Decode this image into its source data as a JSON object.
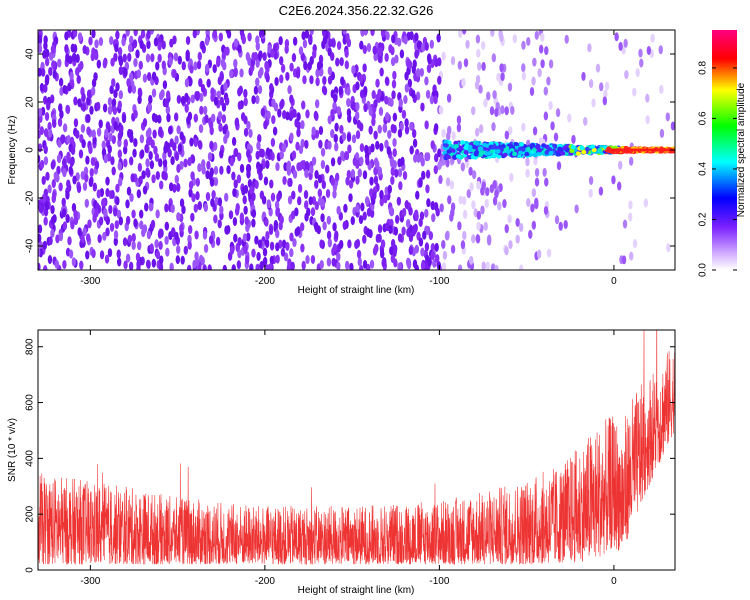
{
  "chart_data": [
    {
      "type": "heatmap",
      "title": "C2E6.2024.356.22.32.G26",
      "xlabel": "Height of straight line (km)",
      "ylabel": "Frequency (Hz)",
      "xlim": [
        -330,
        35
      ],
      "ylim": [
        -50,
        50
      ],
      "xticks": [
        -300,
        -200,
        -100,
        0
      ],
      "yticks": [
        -40,
        -20,
        0,
        20,
        40
      ],
      "colorbar": {
        "label": "Normalized spectral amplitude",
        "range": [
          0.0,
          0.95
        ],
        "ticks": [
          "0.0",
          "0.2",
          "0.4",
          "0.6",
          "0.8"
        ],
        "colormap": [
          "#ff00ff",
          "#0000ff",
          "#00ffff",
          "#00ff00",
          "#ffff00",
          "#ff0000",
          "#ff0080"
        ]
      },
      "description_points": [
        {
          "x": -330,
          "band": "broad",
          "amplitude": 0.05
        },
        {
          "x": -100,
          "band": "broad",
          "amplitude": 0.05
        },
        {
          "x": -95,
          "band": "narrow",
          "amplitude": 0.25
        },
        {
          "x": -50,
          "band": "narrow",
          "amplitude": 0.3
        },
        {
          "x": -20,
          "band": "narrow",
          "amplitude": 0.5
        },
        {
          "x": 0,
          "band": "narrow",
          "amplitude": 0.85
        },
        {
          "x": 35,
          "band": "narrow",
          "amplitude": 0.9
        }
      ]
    },
    {
      "type": "line",
      "xlabel": "Height of straight line (km)",
      "ylabel": "SNR (10 * v/v)",
      "xlim": [
        -330,
        35
      ],
      "ylim": [
        0,
        860
      ],
      "xticks": [
        -300,
        -200,
        -100,
        0
      ],
      "yticks": [
        0,
        200,
        400,
        600,
        800
      ],
      "color": "#ee3333",
      "envelope": {
        "x": [
          -330,
          -310,
          -280,
          -250,
          -200,
          -150,
          -100,
          -70,
          -50,
          -30,
          -20,
          -10,
          0,
          5,
          10,
          20,
          35
        ],
        "upper": [
          350,
          330,
          300,
          260,
          230,
          230,
          250,
          290,
          330,
          380,
          450,
          520,
          560,
          530,
          620,
          700,
          820
        ],
        "lower": [
          20,
          20,
          20,
          20,
          20,
          20,
          20,
          20,
          20,
          25,
          30,
          40,
          80,
          60,
          150,
          300,
          500
        ]
      }
    }
  ]
}
